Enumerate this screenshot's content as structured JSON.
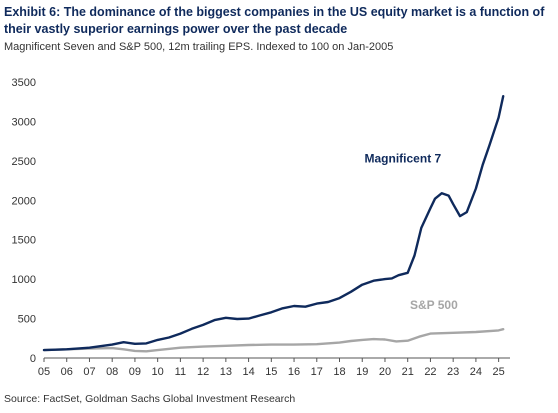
{
  "header": {
    "title": "Exhibit 6: The dominance of the biggest companies in the US equity market is a function of their vastly superior earnings power over the past decade",
    "subtitle": "Magnificent Seven and S&P 500, 12m trailing EPS. Indexed to 100 on Jan-2005"
  },
  "footer": {
    "source": "Source: FactSet, Goldman Sachs Global Investment Research"
  },
  "chart_data": {
    "type": "line",
    "title": "",
    "xlabel": "",
    "ylabel": "",
    "ylim": [
      0,
      3500
    ],
    "xlim": [
      2005,
      2025.5
    ],
    "yticks": [
      0,
      500,
      1000,
      1500,
      2000,
      2500,
      3000,
      3500
    ],
    "xtick_labels": [
      "05",
      "06",
      "07",
      "08",
      "09",
      "10",
      "11",
      "12",
      "13",
      "14",
      "15",
      "16",
      "17",
      "18",
      "19",
      "20",
      "21",
      "22",
      "23",
      "24",
      "25"
    ],
    "grid": false,
    "legend": "inline labels",
    "series": [
      {
        "name": "Magnificent 7",
        "color": "#0f2a5c",
        "x": [
          2005,
          2006,
          2007,
          2008,
          2008.5,
          2009,
          2009.5,
          2010,
          2010.5,
          2011,
          2011.5,
          2012,
          2012.5,
          2013,
          2013.5,
          2014,
          2014.5,
          2015,
          2015.5,
          2016,
          2016.5,
          2017,
          2017.5,
          2018,
          2018.5,
          2019,
          2019.5,
          2020,
          2020.3,
          2020.6,
          2021,
          2021.3,
          2021.6,
          2022,
          2022.2,
          2022.5,
          2022.8,
          2023,
          2023.3,
          2023.6,
          2024,
          2024.3,
          2024.6,
          2025,
          2025.2
        ],
        "y": [
          100,
          110,
          130,
          170,
          200,
          180,
          185,
          230,
          260,
          310,
          370,
          420,
          480,
          510,
          495,
          500,
          540,
          580,
          630,
          660,
          650,
          690,
          710,
          760,
          840,
          930,
          980,
          1000,
          1010,
          1050,
          1080,
          1300,
          1650,
          1900,
          2020,
          2090,
          2060,
          1950,
          1800,
          1850,
          2150,
          2450,
          2700,
          3050,
          3320
        ]
      },
      {
        "name": "S&P 500",
        "color": "#a6a6a6",
        "x": [
          2005,
          2006,
          2007,
          2008,
          2008.5,
          2009,
          2009.5,
          2010,
          2011,
          2012,
          2013,
          2014,
          2015,
          2016,
          2017,
          2018,
          2018.5,
          2019,
          2019.5,
          2020,
          2020.5,
          2021,
          2021.5,
          2022,
          2023,
          2024,
          2025,
          2025.2
        ],
        "y": [
          100,
          110,
          120,
          125,
          110,
          90,
          85,
          100,
          130,
          145,
          155,
          165,
          170,
          170,
          175,
          195,
          215,
          230,
          240,
          235,
          210,
          220,
          270,
          310,
          320,
          330,
          350,
          365
        ]
      }
    ],
    "annotations": [
      {
        "text": "Magnificent 7",
        "x": 2019.1,
        "y": 2480,
        "color": "#0f2a5c"
      },
      {
        "text": "S&P 500",
        "x": 2021.1,
        "y": 620,
        "color": "#a6a6a6"
      }
    ]
  }
}
